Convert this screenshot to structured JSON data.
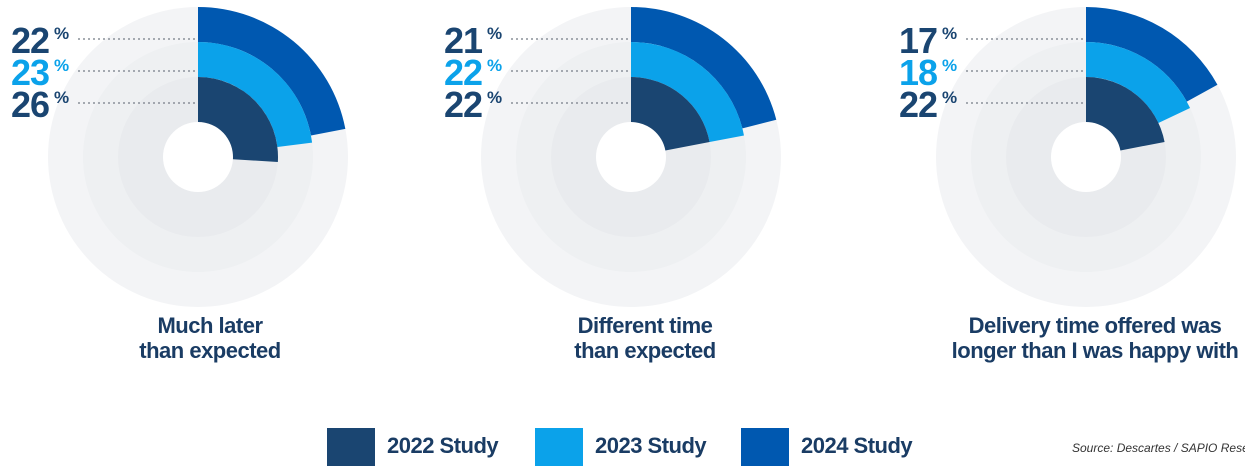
{
  "colors": {
    "2022": "#1a4571",
    "2023": "#0ba2ea",
    "2024": "#0058b0",
    "track": "#f1f2f4",
    "text_dark": "#1a3c64"
  },
  "chart_data": [
    {
      "type": "radial-bar",
      "title": "Much later than expected",
      "title_lines": [
        "Much later",
        "than expected"
      ],
      "series": [
        {
          "name": "2022 Study",
          "value": 26
        },
        {
          "name": "2023 Study",
          "value": 23
        },
        {
          "name": "2024 Study",
          "value": 22
        }
      ],
      "unit": "%"
    },
    {
      "type": "radial-bar",
      "title": "Different time than expected",
      "title_lines": [
        "Different time",
        "than expected"
      ],
      "series": [
        {
          "name": "2022 Study",
          "value": 22
        },
        {
          "name": "2023 Study",
          "value": 22
        },
        {
          "name": "2024 Study",
          "value": 21
        }
      ],
      "unit": "%"
    },
    {
      "type": "radial-bar",
      "title": "Delivery time offered was longer than I was happy with",
      "title_lines": [
        "Delivery time offered was",
        "longer than I was happy with"
      ],
      "series": [
        {
          "name": "2022 Study",
          "value": 22
        },
        {
          "name": "2023 Study",
          "value": 18
        },
        {
          "name": "2024 Study",
          "value": 17
        }
      ],
      "unit": "%"
    }
  ],
  "legend": [
    {
      "label": "2022 Study",
      "color_key": "2022"
    },
    {
      "label": "2023 Study",
      "color_key": "2023"
    },
    {
      "label": "2024 Study",
      "color_key": "2024"
    }
  ],
  "source": "Source: Descartes / SAPIO Research"
}
